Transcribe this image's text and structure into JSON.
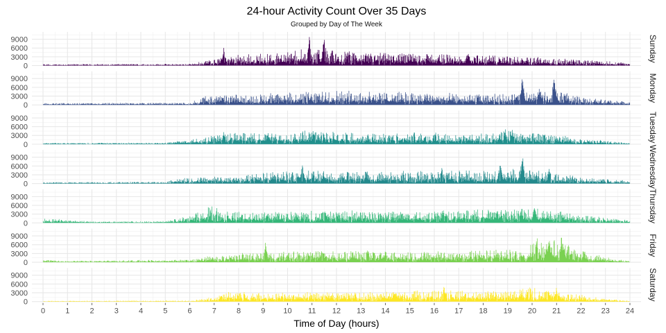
{
  "chart_data": {
    "type": "bar",
    "title": "24-hour Activity Count Over 35 Days",
    "subtitle": "Grouped by Day of The Week",
    "xlabel": "Time of Day (hours)",
    "ylabel": "",
    "xlim": [
      0,
      24
    ],
    "ylim": [
      0,
      11500
    ],
    "x_ticks": [
      "0",
      "1",
      "2",
      "3",
      "4",
      "5",
      "6",
      "7",
      "8",
      "9",
      "10",
      "11",
      "12",
      "13",
      "14",
      "15",
      "16",
      "17",
      "18",
      "19",
      "20",
      "21",
      "22",
      "23",
      "24"
    ],
    "y_ticks": [
      "0",
      "3000",
      "6000",
      "9000"
    ],
    "grid": true,
    "legend": "none",
    "bin_minutes": 1,
    "panels": [
      {
        "name": "Sunday",
        "color": "#440154",
        "profile": [
          [
            0,
            300
          ],
          [
            6,
            400
          ],
          [
            7,
            1500
          ],
          [
            8,
            2300
          ],
          [
            9,
            2700
          ],
          [
            10,
            3200
          ],
          [
            11,
            3600
          ],
          [
            12,
            3200
          ],
          [
            13,
            2800
          ],
          [
            16,
            2700
          ],
          [
            18,
            2200
          ],
          [
            20,
            1900
          ],
          [
            22,
            1300
          ],
          [
            24,
            700
          ]
        ],
        "peaks": [
          [
            7.4,
            6500
          ],
          [
            10.9,
            11000
          ],
          [
            11.5,
            10500
          ],
          [
            11.8,
            7500
          ],
          [
            12.5,
            6500
          ],
          [
            16.5,
            5500
          ],
          [
            17.4,
            4500
          ]
        ]
      },
      {
        "name": "Monday",
        "color": "#3b528b",
        "profile": [
          [
            0,
            400
          ],
          [
            6,
            500
          ],
          [
            6.6,
            2000
          ],
          [
            9,
            2400
          ],
          [
            11,
            3000
          ],
          [
            12,
            3200
          ],
          [
            14,
            2900
          ],
          [
            16,
            2700
          ],
          [
            18,
            2300
          ],
          [
            19.5,
            2500
          ],
          [
            21,
            3400
          ],
          [
            22,
            1800
          ],
          [
            24,
            600
          ]
        ],
        "peaks": [
          [
            9.3,
            4500
          ],
          [
            11.2,
            5500
          ],
          [
            19.6,
            10000
          ],
          [
            20.3,
            6500
          ],
          [
            20.9,
            10500
          ],
          [
            21.3,
            5500
          ]
        ]
      },
      {
        "name": "Tuesday",
        "color": "#21908d",
        "profile": [
          [
            0,
            300
          ],
          [
            5,
            350
          ],
          [
            6.5,
            1500
          ],
          [
            7.5,
            2800
          ],
          [
            9,
            2300
          ],
          [
            11,
            2900
          ],
          [
            12,
            2700
          ],
          [
            14,
            2500
          ],
          [
            16,
            2600
          ],
          [
            18,
            2300
          ],
          [
            19,
            3200
          ],
          [
            21,
            2200
          ],
          [
            22,
            1300
          ],
          [
            24,
            300
          ]
        ],
        "peaks": [
          [
            7.4,
            4500
          ],
          [
            9.2,
            4300
          ],
          [
            11.1,
            5000
          ],
          [
            18.9,
            5500
          ],
          [
            19.2,
            4800
          ]
        ]
      },
      {
        "name": "Wednesday",
        "color": "#238a8d",
        "profile": [
          [
            0,
            300
          ],
          [
            5,
            400
          ],
          [
            5.5,
            1200
          ],
          [
            8,
            1800
          ],
          [
            9,
            2400
          ],
          [
            11,
            3000
          ],
          [
            12,
            2600
          ],
          [
            14,
            2600
          ],
          [
            16,
            2800
          ],
          [
            18,
            2900
          ],
          [
            19.5,
            3300
          ],
          [
            21,
            2400
          ],
          [
            22,
            1500
          ],
          [
            24,
            600
          ]
        ],
        "peaks": [
          [
            10.6,
            7000
          ],
          [
            16.3,
            6000
          ],
          [
            18.7,
            7500
          ],
          [
            19.6,
            10500
          ],
          [
            20.7,
            6000
          ]
        ]
      },
      {
        "name": "Thursday",
        "color": "#35b779",
        "profile": [
          [
            0,
            1000
          ],
          [
            1,
            700
          ],
          [
            2,
            300
          ],
          [
            5,
            400
          ],
          [
            6,
            1600
          ],
          [
            6.8,
            3500
          ],
          [
            7.2,
            2500
          ],
          [
            9,
            2400
          ],
          [
            12,
            2700
          ],
          [
            15,
            2600
          ],
          [
            17,
            2800
          ],
          [
            20,
            3300
          ],
          [
            21,
            2600
          ],
          [
            22,
            1800
          ],
          [
            24,
            700
          ]
        ],
        "peaks": [
          [
            6.9,
            7000
          ],
          [
            7.1,
            5500
          ],
          [
            9.2,
            4000
          ],
          [
            16.4,
            4300
          ],
          [
            20.1,
            5500
          ]
        ]
      },
      {
        "name": "Friday",
        "color": "#7ad151",
        "profile": [
          [
            0,
            600
          ],
          [
            1,
            300
          ],
          [
            6,
            600
          ],
          [
            7,
            1600
          ],
          [
            9,
            2300
          ],
          [
            11,
            2500
          ],
          [
            13,
            2600
          ],
          [
            15,
            2300
          ],
          [
            17,
            2600
          ],
          [
            19,
            2800
          ],
          [
            19.7,
            2600
          ],
          [
            20,
            4000
          ],
          [
            21,
            5200
          ],
          [
            22,
            2500
          ],
          [
            23.5,
            600
          ],
          [
            24,
            300
          ]
        ],
        "peaks": [
          [
            9.1,
            8000
          ],
          [
            11.4,
            4500
          ],
          [
            14,
            4500
          ],
          [
            20.2,
            9500
          ],
          [
            20.7,
            10000
          ],
          [
            21.2,
            9000
          ],
          [
            21.7,
            7000
          ]
        ]
      },
      {
        "name": "Saturday",
        "color": "#fde725",
        "profile": [
          [
            0,
            150
          ],
          [
            6,
            250
          ],
          [
            7,
            1000
          ],
          [
            7.5,
            2400
          ],
          [
            9,
            1800
          ],
          [
            11,
            2000
          ],
          [
            14,
            2100
          ],
          [
            16,
            2500
          ],
          [
            18,
            2300
          ],
          [
            20,
            3000
          ],
          [
            21,
            2200
          ],
          [
            22,
            1500
          ],
          [
            23,
            700
          ],
          [
            24,
            100
          ]
        ],
        "peaks": [
          [
            7.3,
            3200
          ],
          [
            14.4,
            4000
          ],
          [
            16.4,
            5500
          ],
          [
            19.9,
            7500
          ],
          [
            21,
            5000
          ]
        ]
      }
    ]
  }
}
